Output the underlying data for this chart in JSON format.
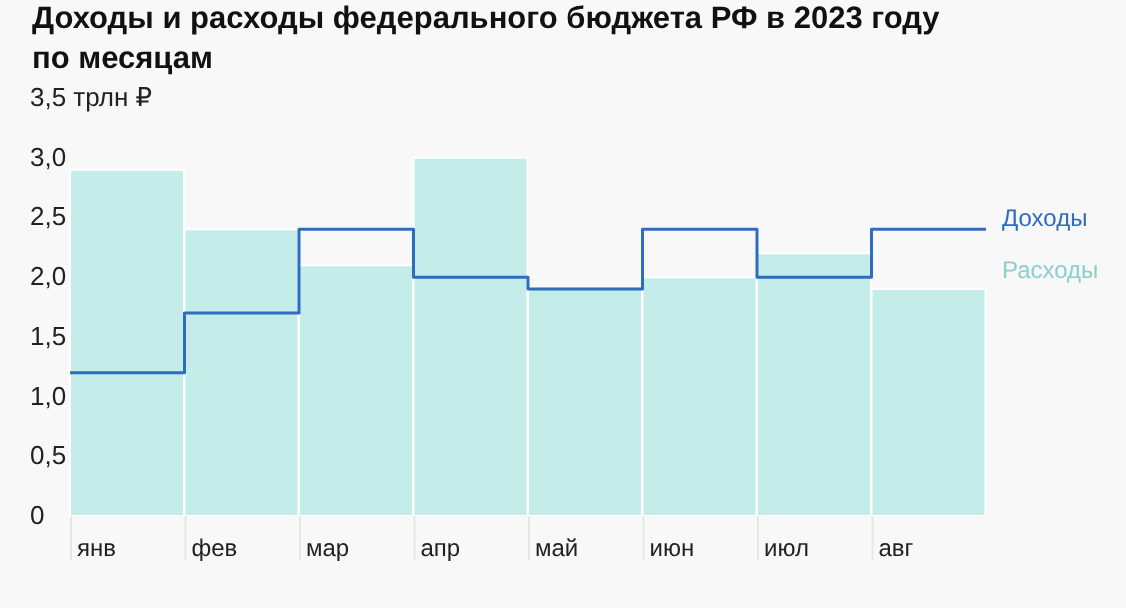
{
  "chart_data": {
    "type": "bar",
    "title": "Доходы и расходы федерального бюджета РФ в 2023 году по месяцам",
    "categories": [
      "янв",
      "фев",
      "мар",
      "апр",
      "май",
      "июн",
      "июл",
      "авг"
    ],
    "series": [
      {
        "name": "Доходы",
        "type": "step",
        "color": "#2f6bbf",
        "values": [
          1.2,
          1.7,
          2.4,
          2.0,
          1.9,
          2.4,
          2.0,
          2.4
        ]
      },
      {
        "name": "Расходы",
        "color": "#c4ece8",
        "values": [
          2.9,
          2.4,
          2.1,
          3.0,
          1.9,
          2.0,
          2.2,
          1.9
        ]
      }
    ],
    "ylim": [
      0,
      3.5
    ],
    "yticks": [
      0,
      {
        "value": 0.5,
        "label": "0,5"
      },
      {
        "value": 1,
        "label": "1,0"
      },
      {
        "value": 1.5,
        "label": "1,5"
      },
      {
        "value": 2,
        "label": "2,0"
      },
      {
        "value": 2.5,
        "label": "2,5"
      },
      {
        "value": 3,
        "label": "3,0"
      },
      {
        "value": 3.5,
        "label": "3,5 трлн ₽"
      }
    ],
    "grid": false,
    "legend": "right"
  }
}
